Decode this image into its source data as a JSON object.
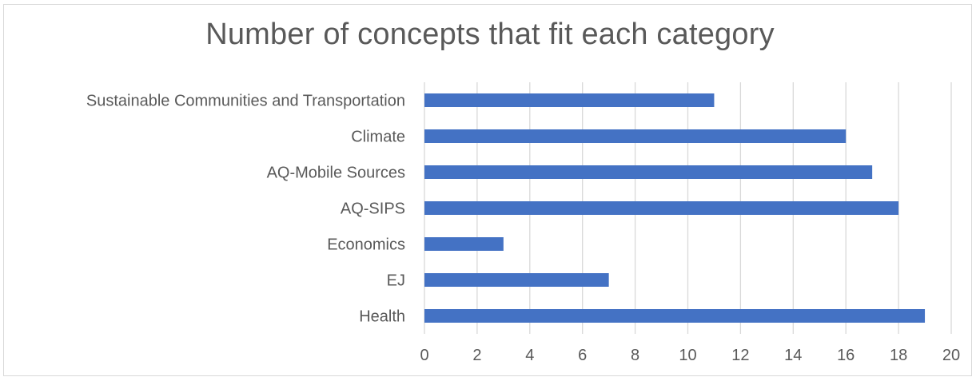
{
  "chart_data": {
    "type": "bar",
    "orientation": "horizontal",
    "title": "Number of concepts that fit each category",
    "xlabel": "",
    "ylabel": "",
    "categories": [
      "Sustainable Communities and Transportation",
      "Climate",
      "AQ-Mobile Sources",
      "AQ-SIPS",
      "Economics",
      "EJ",
      "Health"
    ],
    "values": [
      11,
      16,
      17,
      18,
      3,
      7,
      19
    ],
    "xlim": [
      0,
      20
    ],
    "x_ticks": [
      "0",
      "2",
      "4",
      "6",
      "8",
      "10",
      "12",
      "14",
      "16",
      "18",
      "20"
    ],
    "grid": true,
    "legend": "none",
    "bar_color": "#4472C4"
  }
}
